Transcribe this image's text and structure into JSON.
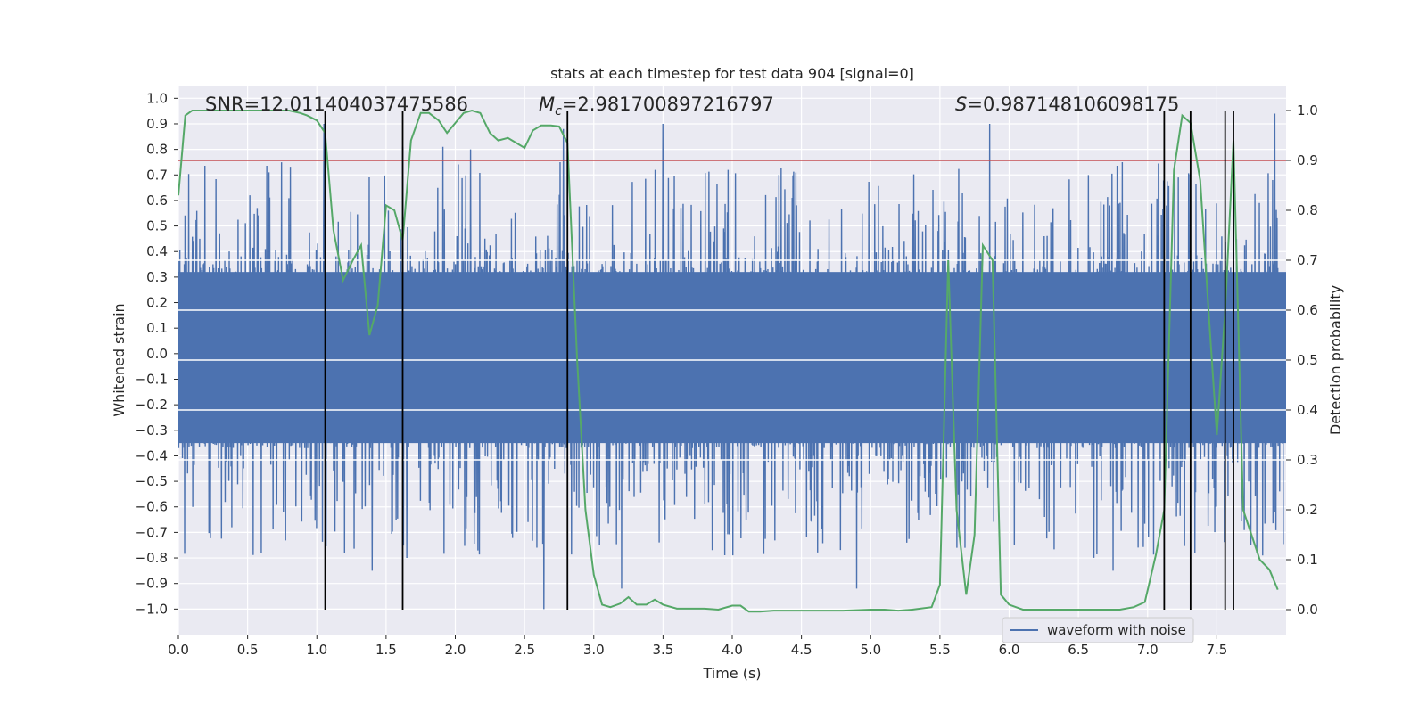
{
  "chart_data": {
    "type": "line",
    "title": "stats at each timestep for test data 904 [signal=0]",
    "xlabel": "Time (s)",
    "ylabel": "Whitened strain",
    "y2label": "Detection probability",
    "xlim": [
      0.0,
      8.0
    ],
    "ylim": [
      -1.1,
      1.05
    ],
    "y2lim": [
      -0.05,
      1.05
    ],
    "x_ticks": [
      "0.0",
      "0.5",
      "1.0",
      "1.5",
      "2.0",
      "2.5",
      "3.0",
      "3.5",
      "4.0",
      "4.5",
      "5.0",
      "5.5",
      "6.0",
      "6.5",
      "7.0",
      "7.5"
    ],
    "y_ticks": [
      "1.0",
      "0.9",
      "0.8",
      "0.7",
      "0.6",
      "0.5",
      "0.4",
      "0.3",
      "0.2",
      "0.1",
      "0.0",
      "-0.1",
      "-0.2",
      "-0.3",
      "-0.4",
      "-0.5",
      "-0.6",
      "-0.7",
      "-0.8",
      "-0.9",
      "-1.0"
    ],
    "y2_ticks": [
      "1.0",
      "0.9",
      "0.8",
      "0.7",
      "0.6",
      "0.5",
      "0.4",
      "0.3",
      "0.2",
      "0.1",
      "0.0"
    ],
    "annotations": {
      "snr": "SNR=12.011404037475586",
      "mc_symbol": "M",
      "mc_sub": "c",
      "mc_value": "=2.981700897216797",
      "s_symbol": "S",
      "s_value": "=0.987148106098175"
    },
    "legend": {
      "label": "waveform with noise",
      "position": "lower-right"
    },
    "threshold": 0.9,
    "event_lines": [
      1.06,
      1.62,
      2.81,
      7.12,
      7.31,
      7.56,
      7.62
    ],
    "waveform": {
      "name": "waveform with noise",
      "n_samples": 3000,
      "core_band": [
        -0.37,
        0.34
      ],
      "spike_max": 0.94,
      "spike_min": -1.0,
      "peaks": [
        {
          "t": 1.05,
          "v": 0.9
        },
        {
          "t": 1.62,
          "v": 0.81
        },
        {
          "t": 1.91,
          "v": 0.81
        },
        {
          "t": 2.11,
          "v": 0.8
        },
        {
          "t": 2.78,
          "v": 0.88
        },
        {
          "t": 3.5,
          "v": 0.9
        },
        {
          "t": 5.86,
          "v": 0.9
        },
        {
          "t": 7.92,
          "v": 0.94
        },
        {
          "t": 7.62,
          "v": 0.79
        },
        {
          "t": 2.64,
          "v": -1.0
        },
        {
          "t": 1.4,
          "v": -0.85
        },
        {
          "t": 1.65,
          "v": -0.8
        },
        {
          "t": 3.2,
          "v": -0.92
        },
        {
          "t": 4.9,
          "v": -0.92
        },
        {
          "t": 6.75,
          "v": -0.85
        }
      ]
    },
    "probability": {
      "name": "detection probability",
      "x": [
        0.0,
        0.05,
        0.1,
        0.2,
        0.4,
        0.6,
        0.8,
        0.88,
        0.93,
        1.0,
        1.06,
        1.12,
        1.19,
        1.26,
        1.32,
        1.38,
        1.44,
        1.5,
        1.56,
        1.62,
        1.68,
        1.75,
        1.81,
        1.88,
        1.94,
        2.0,
        2.06,
        2.12,
        2.18,
        2.25,
        2.31,
        2.38,
        2.44,
        2.5,
        2.56,
        2.62,
        2.69,
        2.75,
        2.81,
        2.88,
        2.94,
        3.0,
        3.06,
        3.12,
        3.19,
        3.25,
        3.31,
        3.38,
        3.44,
        3.5,
        3.6,
        3.7,
        3.8,
        3.9,
        4.0,
        4.06,
        4.12,
        4.2,
        4.3,
        4.4,
        4.5,
        4.6,
        4.8,
        5.0,
        5.1,
        5.2,
        5.3,
        5.44,
        5.5,
        5.56,
        5.62,
        5.69,
        5.75,
        5.81,
        5.88,
        5.94,
        6.0,
        6.1,
        6.2,
        6.4,
        6.6,
        6.8,
        6.9,
        6.98,
        7.06,
        7.12,
        7.19,
        7.25,
        7.31,
        7.38,
        7.44,
        7.5,
        7.56,
        7.62,
        7.69,
        7.75,
        7.81,
        7.88,
        7.94
      ],
      "values": [
        0.83,
        0.99,
        1.0,
        1.0,
        1.0,
        1.0,
        1.0,
        0.995,
        0.99,
        0.98,
        0.955,
        0.76,
        0.66,
        0.7,
        0.73,
        0.55,
        0.61,
        0.81,
        0.8,
        0.74,
        0.94,
        0.995,
        0.995,
        0.98,
        0.955,
        0.975,
        0.995,
        1.0,
        0.995,
        0.955,
        0.94,
        0.945,
        0.935,
        0.925,
        0.96,
        0.97,
        0.97,
        0.968,
        0.935,
        0.5,
        0.2,
        0.07,
        0.01,
        0.005,
        0.012,
        0.025,
        0.01,
        0.01,
        0.02,
        0.01,
        0.002,
        0.002,
        0.002,
        0.0,
        0.008,
        0.008,
        -0.004,
        -0.004,
        -0.002,
        -0.002,
        -0.002,
        -0.002,
        -0.002,
        0.0,
        0.0,
        -0.002,
        0.0,
        0.005,
        0.05,
        0.7,
        0.2,
        0.03,
        0.15,
        0.73,
        0.7,
        0.03,
        0.01,
        0.0,
        0.0,
        0.0,
        0.0,
        0.0,
        0.005,
        0.015,
        0.11,
        0.2,
        0.88,
        0.99,
        0.975,
        0.86,
        0.6,
        0.35,
        0.6,
        0.94,
        0.2,
        0.15,
        0.1,
        0.08,
        0.04
      ]
    }
  }
}
